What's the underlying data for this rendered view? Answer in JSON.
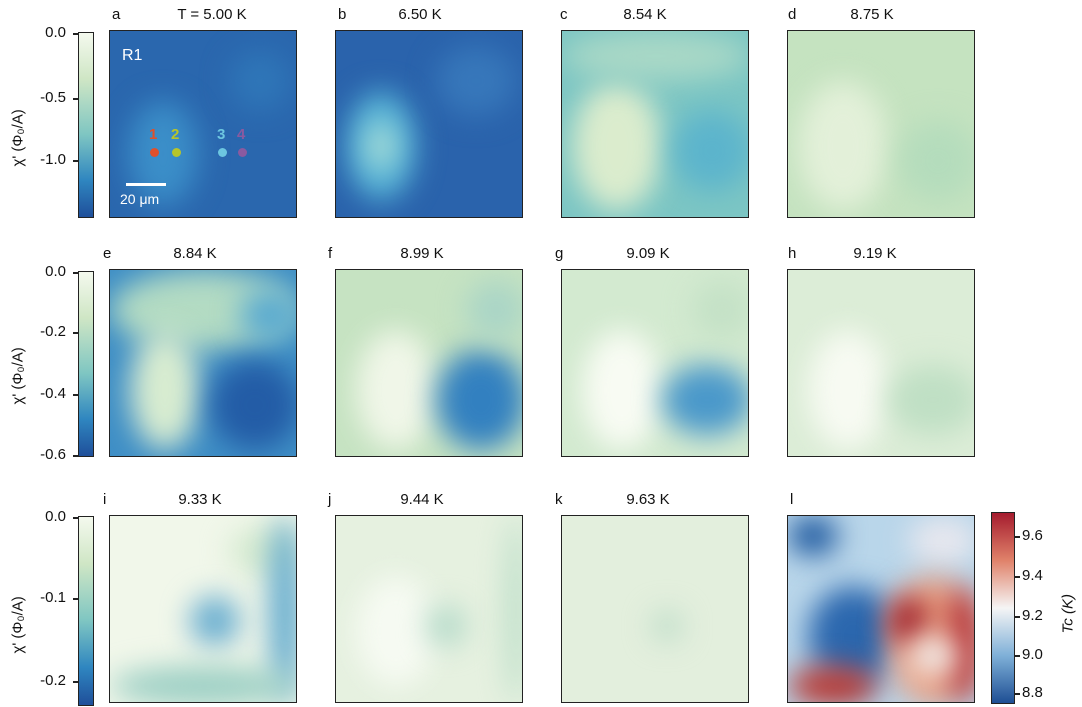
{
  "rows": [
    {
      "ticks": [
        "0.0",
        "-0.5",
        "-1.0"
      ],
      "ylabel": "χ' (Φ₀/A)",
      "panels": [
        {
          "letter": "a",
          "title": "T = 5.00 K",
          "inset": "R1",
          "scale": "20 μm"
        },
        {
          "letter": "b",
          "title": "6.50 K"
        },
        {
          "letter": "c",
          "title": "8.54 K"
        },
        {
          "letter": "d",
          "title": "8.75 K"
        }
      ]
    },
    {
      "ticks": [
        "0.0",
        "-0.2",
        "-0.4",
        "-0.6"
      ],
      "ylabel": "χ' (Φ₀/A)",
      "panels": [
        {
          "letter": "e",
          "title": "8.84 K"
        },
        {
          "letter": "f",
          "title": "8.99 K"
        },
        {
          "letter": "g",
          "title": "9.09 K"
        },
        {
          "letter": "h",
          "title": "9.19 K"
        }
      ]
    },
    {
      "ticks": [
        "0.0",
        "-0.1",
        "-0.2"
      ],
      "ylabel": "χ' (Φ₀/A)",
      "panels": [
        {
          "letter": "i",
          "title": "9.33 K"
        },
        {
          "letter": "j",
          "title": "9.44 K"
        },
        {
          "letter": "k",
          "title": "9.63 K"
        },
        {
          "letter": "l",
          "title": ""
        }
      ]
    }
  ],
  "points": [
    {
      "label": "1",
      "color": "#e0502a"
    },
    {
      "label": "2",
      "color": "#b7c52a"
    },
    {
      "label": "3",
      "color": "#6cc6e0"
    },
    {
      "label": "4",
      "color": "#8a5aa0"
    }
  ],
  "tc_colorbar": {
    "ticks": [
      "9.6",
      "9.4",
      "9.2",
      "9.0",
      "8.8"
    ],
    "label": "Tc (K)"
  }
}
